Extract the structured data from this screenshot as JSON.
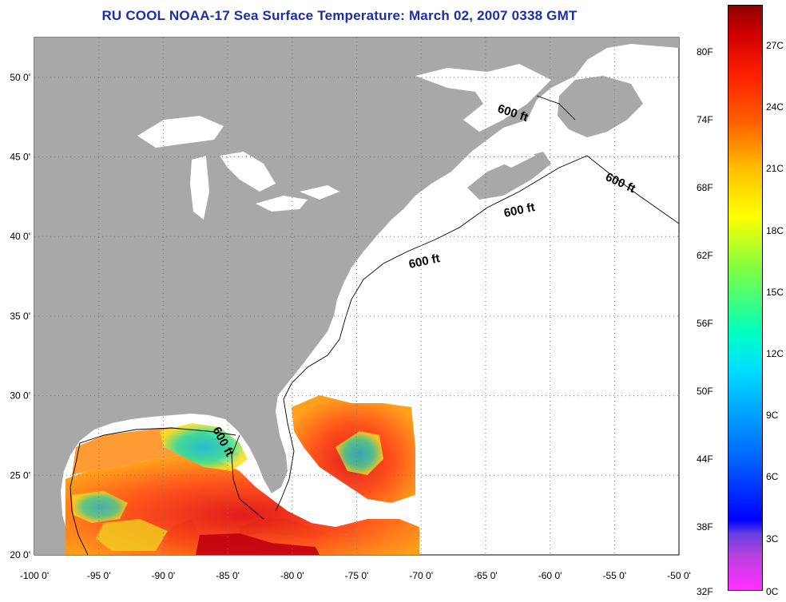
{
  "title": "RU COOL  NOAA-17  Sea Surface Temperature:  March 02, 2007 0338 GMT",
  "map": {
    "lon_range": [
      -100,
      -50
    ],
    "lat_range": [
      20,
      52.5
    ],
    "lon_ticks": [
      "-100 0'",
      "-95 0'",
      "-90 0'",
      "-85 0'",
      "-80 0'",
      "-75 0'",
      "-70 0'",
      "-65 0'",
      "-60 0'",
      "-55 0'",
      "-50 0'"
    ],
    "lat_ticks": [
      "20 0'",
      "25 0'",
      "30 0'",
      "35 0'",
      "40 0'",
      "45 0'",
      "50 0'"
    ],
    "grid": "dotted",
    "land_color": "#a8a8a8",
    "no_data_color": "#ffffff",
    "contour": {
      "label": "600 ft",
      "depth_ft": 600
    }
  },
  "colorbar": {
    "fahrenheit_labels": [
      "80F",
      "74F",
      "68F",
      "62F",
      "56F",
      "50F",
      "44F",
      "38F",
      "32F"
    ],
    "celsius_labels": [
      "27C",
      "24C",
      "21C",
      "18C",
      "15C",
      "12C",
      "9C",
      "6C",
      "3C",
      "0C"
    ],
    "range_c": [
      0,
      28.5
    ]
  }
}
